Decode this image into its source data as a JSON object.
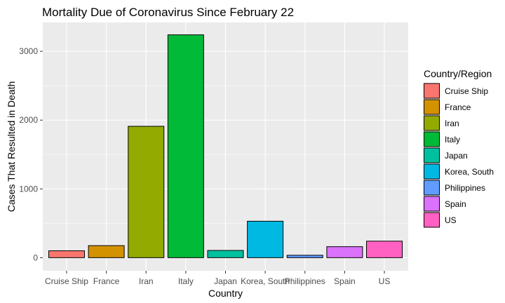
{
  "chart_data": {
    "type": "bar",
    "title": "Mortality Due of Coronavirus Since February 22",
    "xlabel": "Country",
    "ylabel": "Cases That Resulted in Death",
    "categories": [
      "Cruise Ship",
      "France",
      "Iran",
      "Italy",
      "Japan",
      "Korea, South",
      "Philippines",
      "Spain",
      "US"
    ],
    "values": [
      100,
      175,
      1910,
      3240,
      105,
      530,
      35,
      160,
      240
    ],
    "ylim": [
      -190,
      3420
    ],
    "yticks": [
      0,
      1000,
      2000,
      3000
    ],
    "ytick_labels": [
      "0",
      "1000",
      "2000",
      "3000"
    ],
    "grid": true,
    "legend": {
      "title": "Country/Region",
      "placement": "right",
      "entries": [
        "Cruise Ship",
        "France",
        "Iran",
        "Italy",
        "Japan",
        "Korea, South",
        "Philippines",
        "Spain",
        "US"
      ]
    },
    "colors": [
      "#F8766D",
      "#D39200",
      "#93AA00",
      "#00BA38",
      "#00C19F",
      "#00B9E3",
      "#619CFF",
      "#DB72FB",
      "#FF61C3"
    ],
    "panel_background": "#EBEBEB",
    "grid_color": "#FFFFFF"
  }
}
